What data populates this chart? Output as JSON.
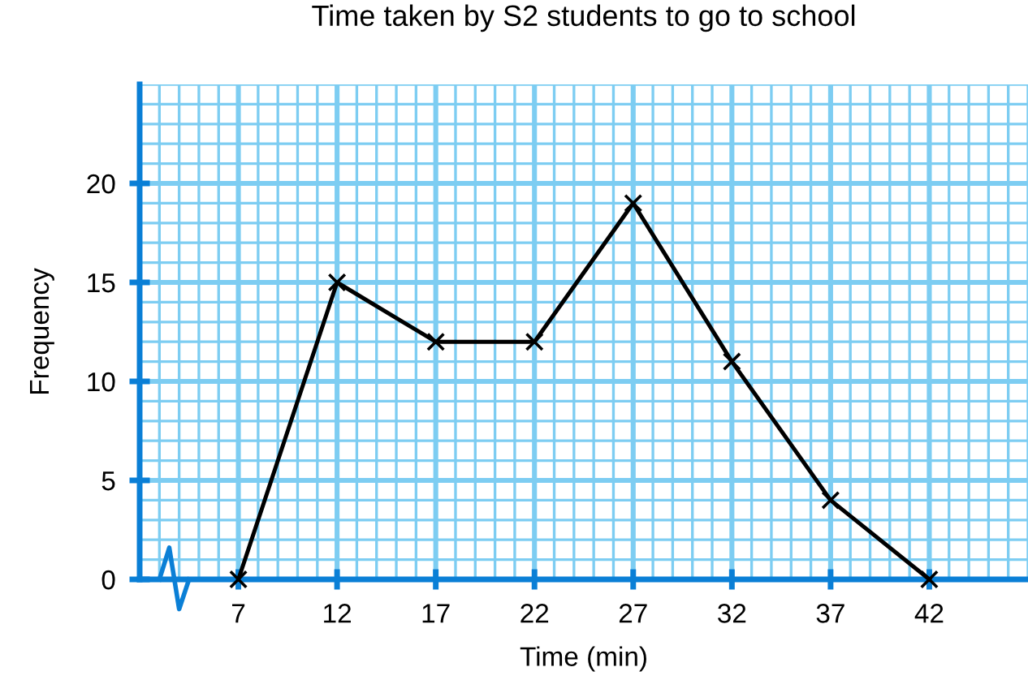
{
  "chart_data": {
    "type": "line",
    "title": "Time taken by S2 students to go to school",
    "xlabel": "Time (min)",
    "ylabel": "Frequency",
    "x": [
      7,
      12,
      17,
      22,
      27,
      32,
      37,
      42
    ],
    "series": [
      {
        "color": "#000000",
        "values": [
          0,
          15,
          12,
          12,
          19,
          11,
          4,
          0
        ]
      }
    ],
    "xlim": [
      2,
      47
    ],
    "xticks": [
      {
        "value": 2,
        "label": null
      },
      {
        "value": 3,
        "label": null
      },
      {
        "value": 4,
        "label": null
      },
      {
        "value": 5,
        "label": null
      },
      {
        "value": 6,
        "label": null
      },
      7,
      {
        "value": 8,
        "label": null
      },
      {
        "value": 9,
        "label": null
      },
      {
        "value": 10,
        "label": null
      },
      {
        "value": 11,
        "label": null
      },
      12,
      {
        "value": 13,
        "label": null
      },
      {
        "value": 14,
        "label": null
      },
      {
        "value": 15,
        "label": null
      },
      {
        "value": 16,
        "label": null
      },
      17,
      {
        "value": 18,
        "label": null
      },
      {
        "value": 19,
        "label": null
      },
      {
        "value": 20,
        "label": null
      },
      {
        "value": 21,
        "label": null
      },
      22,
      {
        "value": 23,
        "label": null
      },
      {
        "value": 24,
        "label": null
      },
      {
        "value": 25,
        "label": null
      },
      {
        "value": 26,
        "label": null
      },
      27,
      {
        "value": 28,
        "label": null
      },
      {
        "value": 29,
        "label": null
      },
      {
        "value": 30,
        "label": null
      },
      {
        "value": 31,
        "label": null
      },
      32,
      {
        "value": 33,
        "label": null
      },
      {
        "value": 34,
        "label": null
      },
      {
        "value": 35,
        "label": null
      },
      {
        "value": 36,
        "label": null
      },
      37,
      {
        "value": 38,
        "label": null
      },
      {
        "value": 39,
        "label": null
      },
      {
        "value": 40,
        "label": null
      },
      {
        "value": 41,
        "label": null
      },
      42,
      {
        "value": 43,
        "label": null
      },
      {
        "value": 44,
        "label": null
      },
      {
        "value": 45,
        "label": null
      },
      {
        "value": 46,
        "label": null
      },
      {
        "value": 47,
        "label": null
      }
    ],
    "ylim": [
      0,
      25
    ],
    "yticks": [
      0,
      {
        "value": 1,
        "label": null
      },
      {
        "value": 2,
        "label": null
      },
      {
        "value": 3,
        "label": null
      },
      {
        "value": 4,
        "label": null
      },
      5,
      {
        "value": 6,
        "label": null
      },
      {
        "value": 7,
        "label": null
      },
      {
        "value": 8,
        "label": null
      },
      {
        "value": 9,
        "label": null
      },
      10,
      {
        "value": 11,
        "label": null
      },
      {
        "value": 12,
        "label": null
      },
      {
        "value": 13,
        "label": null
      },
      {
        "value": 14,
        "label": null
      },
      15,
      {
        "value": 16,
        "label": null
      },
      {
        "value": 17,
        "label": null
      },
      {
        "value": 18,
        "label": null
      },
      {
        "value": 19,
        "label": null
      },
      20,
      {
        "value": 21,
        "label": null
      },
      {
        "value": 22,
        "label": null
      },
      {
        "value": 23,
        "label": null
      },
      {
        "value": 24,
        "label": null
      },
      {
        "value": 25,
        "label": null
      }
    ],
    "grid": true,
    "marker": "cross",
    "line_style": "solid"
  }
}
